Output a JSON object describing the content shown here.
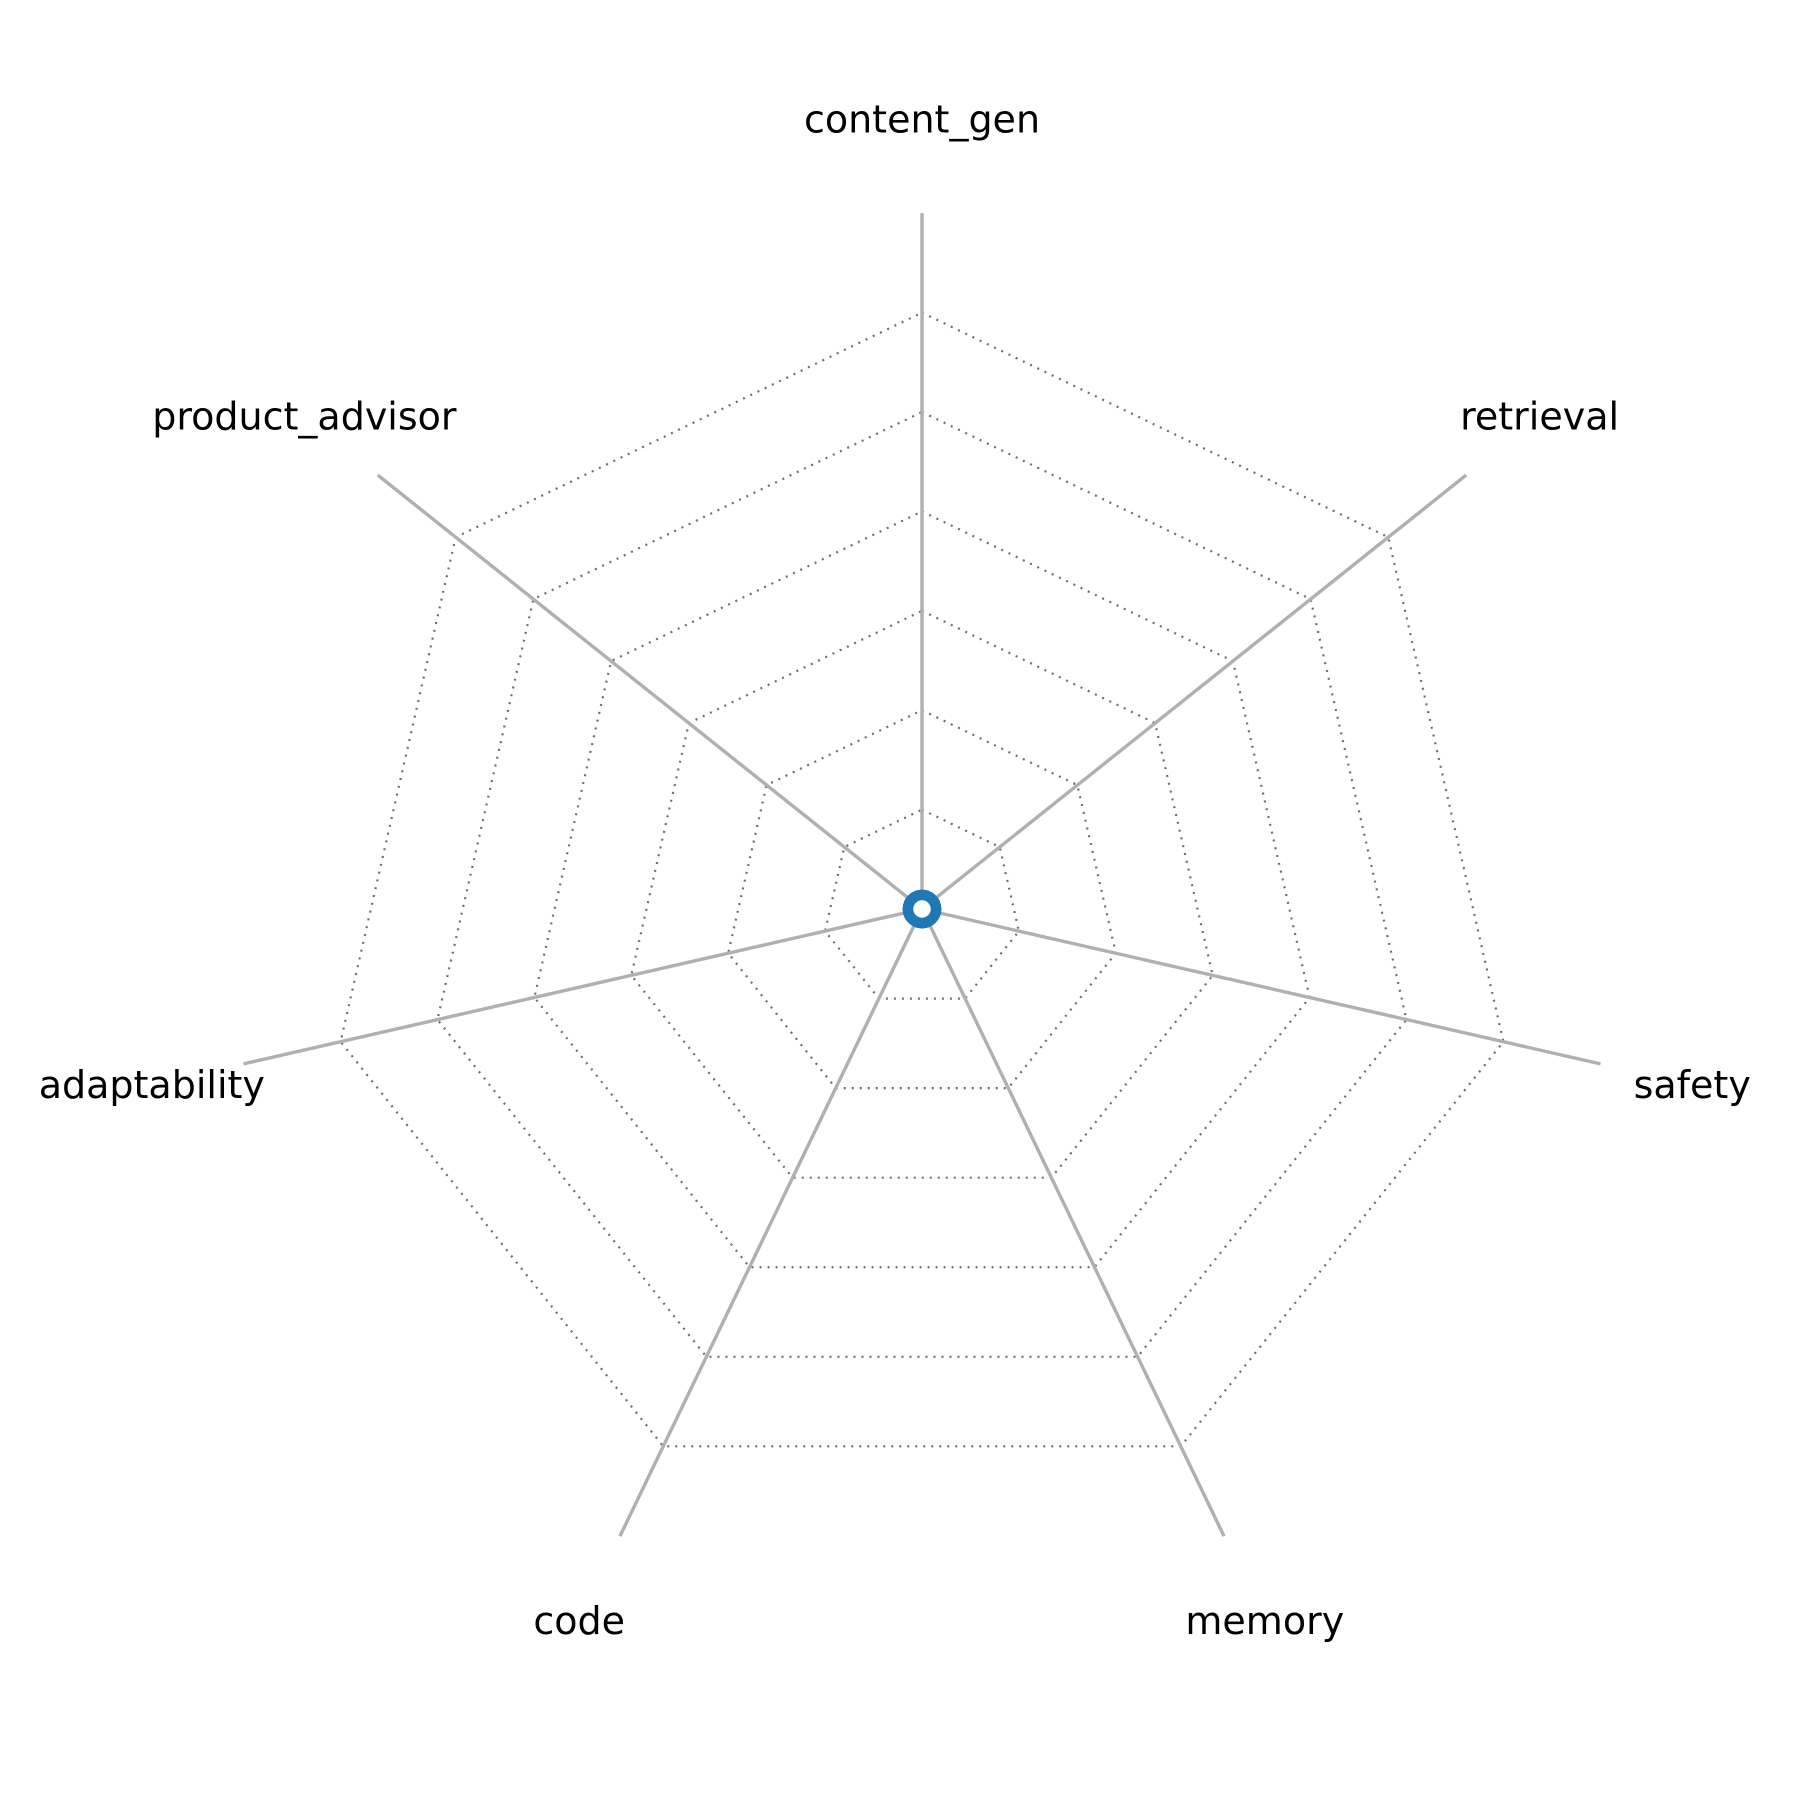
{
  "figure": {
    "background": "#ffffff"
  },
  "chart_data": {
    "type": "radar",
    "title": "",
    "categories": [
      "content_gen",
      "retrieval",
      "safety",
      "memory",
      "code",
      "adaptability",
      "product_advisor"
    ],
    "values": [
      0,
      0,
      0,
      0,
      0,
      0,
      0
    ],
    "legend": "none",
    "radial_tick_labels": "none",
    "grid_on": true,
    "grid_levels": 6,
    "grid_style": "dotted",
    "start_axis": "top",
    "direction": "clockwise",
    "style": {
      "series_color": "#1f77b4",
      "marker_face_color": "#ffffff",
      "spoke_color": "#b0b0b0",
      "grid_color": "#6e6e6e",
      "label_color": "#000000"
    }
  }
}
